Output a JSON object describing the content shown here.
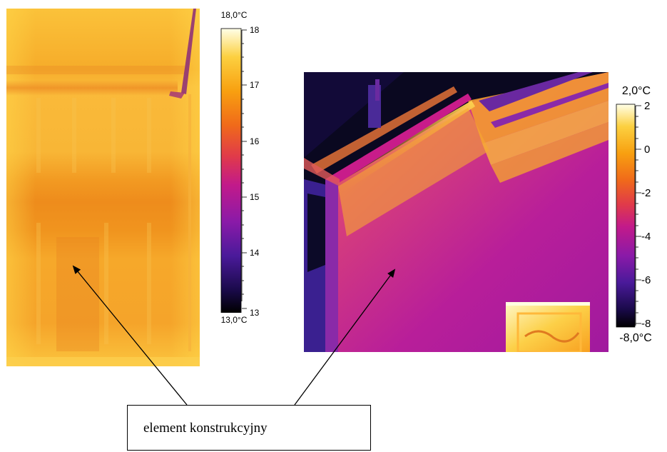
{
  "left_scale": {
    "max_label": "18,0°C",
    "min_label": "13,0°C",
    "ticks": [
      "18",
      "17",
      "16",
      "15",
      "14",
      "13"
    ]
  },
  "right_scale": {
    "max_label": "2,0°C",
    "min_label": "-8,0°C",
    "ticks": [
      "2",
      "0",
      "-2",
      "-4",
      "-6",
      "-8"
    ]
  },
  "caption": {
    "text": "element konstrukcyjny"
  },
  "colors": {
    "iron_palette": [
      "#000000",
      "#1a0a4a",
      "#4a1a9a",
      "#8a1aa8",
      "#c21a8a",
      "#e03a4a",
      "#f06a1a",
      "#f8a010",
      "#fcd040",
      "#ffffe8"
    ]
  }
}
